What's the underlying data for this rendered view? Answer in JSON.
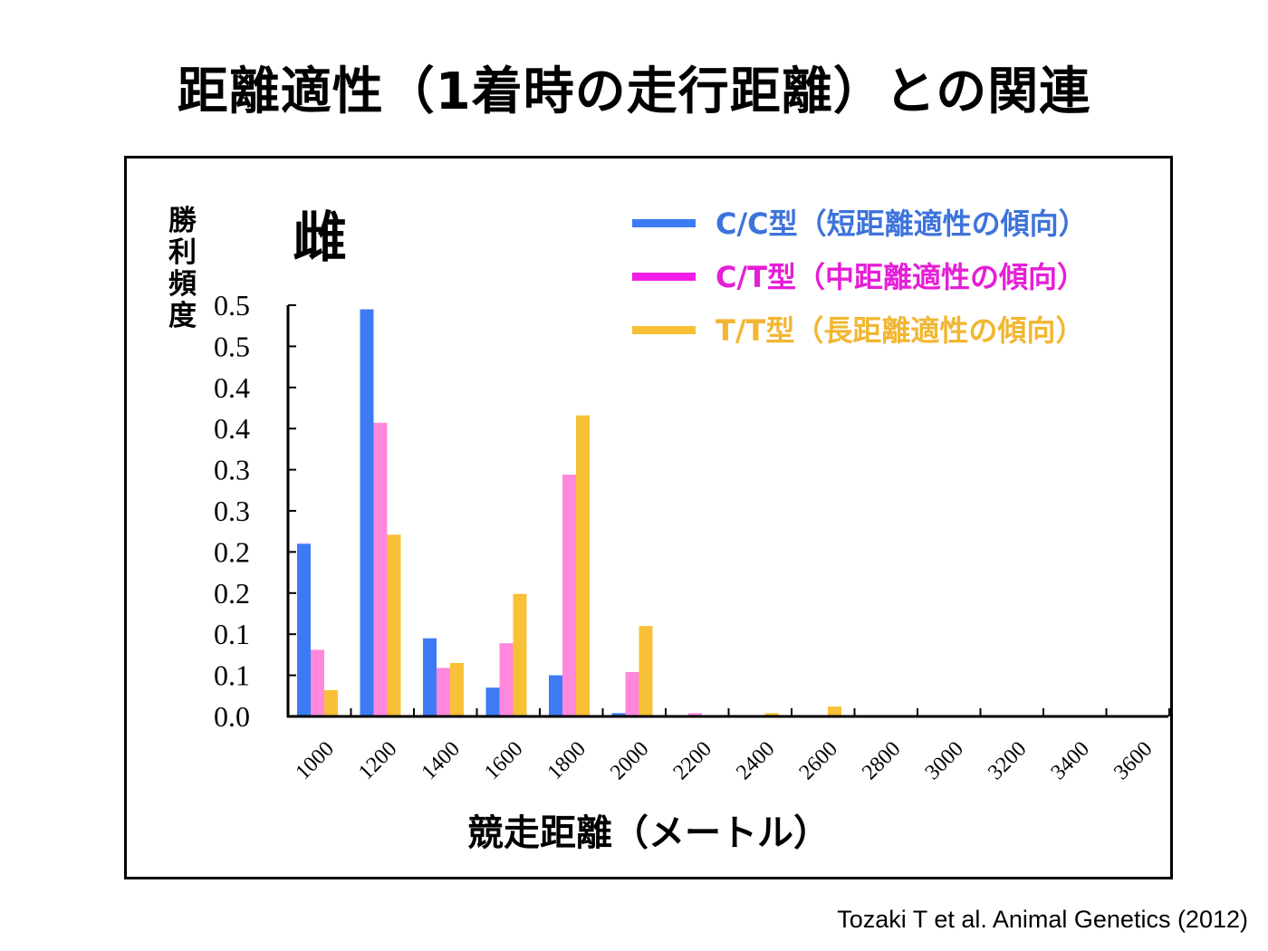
{
  "slide": {
    "title": "距離適性（1着時の走行距離）との関連",
    "citation": "Tozaki T et al. Animal Genetics (2012)"
  },
  "chart_data": {
    "type": "bar",
    "panel_label": "雌",
    "ylabel": "勝利頻度",
    "xlabel": "競走距離（メートル）",
    "categories": [
      "1000",
      "1200",
      "1400",
      "1600",
      "1800",
      "2000",
      "2200",
      "2400",
      "2600",
      "2800",
      "3000",
      "3200",
      "3400",
      "3600"
    ],
    "y_tick_labels": [
      "0.0",
      "0.1",
      "0.1",
      "0.2",
      "0.2",
      "0.3",
      "0.3",
      "0.4",
      "0.4",
      "0.5",
      "0.5"
    ],
    "ylim": [
      0,
      0.5
    ],
    "grid": false,
    "legend_position": "top-right",
    "series": [
      {
        "name": "C/C型（短距離適性の傾向）",
        "color": "#3d7bf5",
        "values": [
          0.21,
          0.495,
          0.095,
          0.035,
          0.05,
          0.004,
          0,
          0.001,
          0,
          0,
          0,
          0,
          0,
          0
        ]
      },
      {
        "name": "C/T型（中距離適性の傾向）",
        "color": "#ff88dd",
        "values": [
          0.081,
          0.357,
          0.059,
          0.089,
          0.294,
          0.054,
          0.004,
          0.001,
          0.001,
          0,
          0,
          0,
          0,
          0
        ]
      },
      {
        "name": "T/T型（長距離適性の傾向）",
        "color": "#f7c037",
        "values": [
          0.032,
          0.221,
          0.065,
          0.149,
          0.366,
          0.11,
          0,
          0.004,
          0.012,
          0,
          0,
          0,
          0,
          0
        ]
      }
    ],
    "legend_colors": {
      "text": [
        "#3d73db",
        "#e61ed6",
        "#f2b632"
      ],
      "swatch": [
        "#3d7bf5",
        "#f21ee8",
        "#f7c037"
      ]
    }
  }
}
